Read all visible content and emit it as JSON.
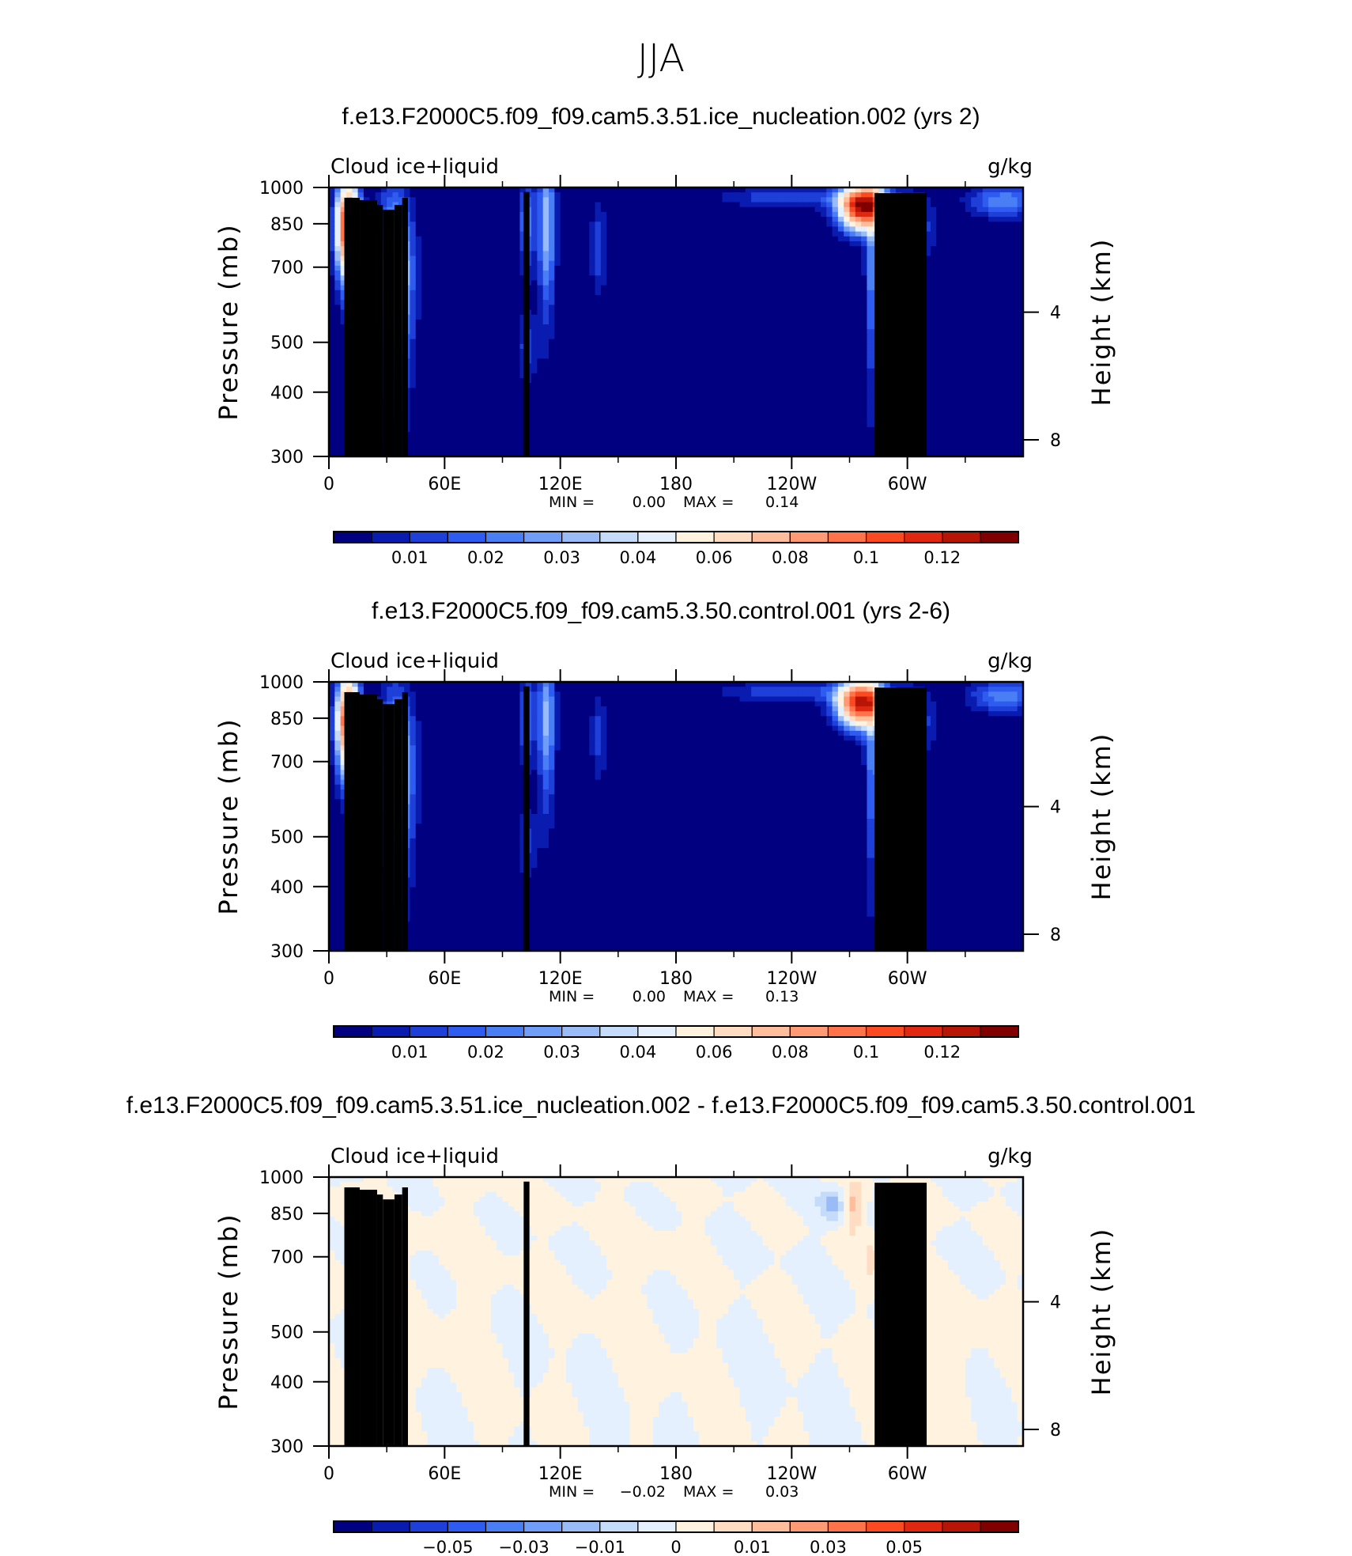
{
  "suptitle": "JJA",
  "colors": {
    "seq": [
      "#000080",
      "#0a1cb0",
      "#1e3fd8",
      "#2f5cf0",
      "#4a7ef5",
      "#6f9df7",
      "#99bcf7",
      "#c4dbfa",
      "#e4f0fe",
      "#fff3e0",
      "#ffdcc2",
      "#ffbd9c",
      "#ff9a74",
      "#ff734a",
      "#fb4a22",
      "#e02810",
      "#b81506",
      "#800000"
    ],
    "diff": [
      "#000080",
      "#0a1cb0",
      "#1e3fd8",
      "#2f5cf0",
      "#4a7ef5",
      "#6f9df7",
      "#99bcf7",
      "#c4dbfa",
      "#e4f0fe",
      "#fff3e0",
      "#ffdcc2",
      "#ffbd9c",
      "#ff9a74",
      "#ff734a",
      "#fb4a22",
      "#e02810",
      "#b81506",
      "#800000"
    ],
    "topo": "#000000"
  },
  "panels": [
    {
      "title": "f.e13.F2000C5.f09_f09.cam5.3.51.ice_nucleation.002 (yrs 2)",
      "left_label": "Cloud  ice+liquid",
      "right_label": "g/kg",
      "min_label": "MIN  =",
      "min_value": "0.00",
      "max_label": "MAX  =",
      "max_value": "0.14",
      "colorbar_ticks": [
        "0.01",
        "0.02",
        "0.03",
        "0.04",
        "0.06",
        "0.08",
        "0.1",
        "0.12"
      ]
    },
    {
      "title": "f.e13.F2000C5.f09_f09.cam5.3.50.control.001 (yrs 2-6)",
      "left_label": "Cloud  ice+liquid",
      "right_label": "g/kg",
      "min_label": "MIN  =",
      "min_value": "0.00",
      "max_label": "MAX  =",
      "max_value": "0.13",
      "colorbar_ticks": [
        "0.01",
        "0.02",
        "0.03",
        "0.04",
        "0.06",
        "0.08",
        "0.1",
        "0.12"
      ]
    },
    {
      "title": "f.e13.F2000C5.f09_f09.cam5.3.51.ice_nucleation.002 - f.e13.F2000C5.f09_f09.cam5.3.50.control.001",
      "left_label": "Cloud  ice+liquid",
      "right_label": "g/kg",
      "min_label": "MIN  =",
      "min_value": "−0.02",
      "max_label": "MAX  =",
      "max_value": "0.03",
      "colorbar_ticks": [
        "−0.05",
        "−0.03",
        "−0.01",
        "0",
        "0.01",
        "0.03",
        "0.05"
      ]
    }
  ],
  "chart_data": [
    {
      "type": "heatmap",
      "title": "f.e13.F2000C5.f09_f09.cam5.3.51.ice_nucleation.002 (yrs 2)",
      "variable": "Cloud  ice+liquid",
      "units": "g/kg",
      "xlabel": "",
      "ylabel": "Pressure (mb)",
      "ylabel_right": "Height (km)",
      "x_ticks": [
        "0",
        "60E",
        "120E",
        "180",
        "120W",
        "60W"
      ],
      "x_tick_values": [
        0,
        60,
        120,
        180,
        240,
        300
      ],
      "xlim": [
        0,
        360
      ],
      "y_ticks": [
        "300",
        "400",
        "500",
        "700",
        "850",
        "1000"
      ],
      "y_tick_values": [
        300,
        400,
        500,
        700,
        850,
        1000
      ],
      "ylim": [
        1000,
        300
      ],
      "y_scale": "log",
      "y_right_ticks": [
        "8",
        "4"
      ],
      "y_right_tick_values": [
        8,
        4
      ],
      "min": 0.0,
      "max": 0.14,
      "levels": [
        0.005,
        0.01,
        0.015,
        0.02,
        0.025,
        0.03,
        0.035,
        0.04,
        0.05,
        0.06,
        0.07,
        0.08,
        0.09,
        0.1,
        0.11,
        0.12,
        0.13
      ],
      "features": [
        {
          "lon": 10,
          "p": 840,
          "value": 0.12,
          "sx": 4,
          "sy": 120
        },
        {
          "lon": 34,
          "p": 680,
          "value": 0.055,
          "sx": 6,
          "sy": 180
        },
        {
          "lon": 103,
          "p": 490,
          "value": 0.012,
          "sx": 4,
          "sy": 55
        },
        {
          "lon": 103,
          "p": 860,
          "value": 0.022,
          "sx": 3,
          "sy": 120
        },
        {
          "lon": 113,
          "p": 850,
          "value": 0.035,
          "sx": 3,
          "sy": 190
        },
        {
          "lon": 140,
          "p": 770,
          "value": 0.014,
          "sx": 3,
          "sy": 110
        },
        {
          "lon": 277,
          "p": 920,
          "value": 0.135,
          "sx": 8,
          "sy": 60
        },
        {
          "lon": 282,
          "p": 700,
          "value": 0.025,
          "sx": 2.5,
          "sy": 210
        },
        {
          "lon": 302,
          "p": 840,
          "value": 0.018,
          "sx": 8,
          "sy": 90
        },
        {
          "lon": 240,
          "p": 955,
          "value": 0.015,
          "sx": 25,
          "sy": 30
        },
        {
          "lon": 350,
          "p": 940,
          "value": 0.025,
          "sx": 12,
          "sy": 45
        }
      ]
    },
    {
      "type": "heatmap",
      "title": "f.e13.F2000C5.f09_f09.cam5.3.50.control.001 (yrs 2-6)",
      "variable": "Cloud  ice+liquid",
      "units": "g/kg",
      "xlabel": "",
      "ylabel": "Pressure (mb)",
      "ylabel_right": "Height (km)",
      "x_ticks": [
        "0",
        "60E",
        "120E",
        "180",
        "120W",
        "60W"
      ],
      "x_tick_values": [
        0,
        60,
        120,
        180,
        240,
        300
      ],
      "xlim": [
        0,
        360
      ],
      "y_ticks": [
        "300",
        "400",
        "500",
        "700",
        "850",
        "1000"
      ],
      "y_tick_values": [
        300,
        400,
        500,
        700,
        850,
        1000
      ],
      "ylim": [
        1000,
        300
      ],
      "y_scale": "log",
      "y_right_ticks": [
        "8",
        "4"
      ],
      "y_right_tick_values": [
        8,
        4
      ],
      "min": 0.0,
      "max": 0.13,
      "levels": [
        0.005,
        0.01,
        0.015,
        0.02,
        0.025,
        0.03,
        0.035,
        0.04,
        0.05,
        0.06,
        0.07,
        0.08,
        0.09,
        0.1,
        0.11,
        0.12,
        0.13
      ],
      "features": [
        {
          "lon": 10,
          "p": 840,
          "value": 0.11,
          "sx": 4,
          "sy": 120
        },
        {
          "lon": 35,
          "p": 680,
          "value": 0.045,
          "sx": 6,
          "sy": 180
        },
        {
          "lon": 103,
          "p": 490,
          "value": 0.011,
          "sx": 4,
          "sy": 55
        },
        {
          "lon": 103,
          "p": 860,
          "value": 0.02,
          "sx": 3,
          "sy": 120
        },
        {
          "lon": 113,
          "p": 850,
          "value": 0.032,
          "sx": 3,
          "sy": 190
        },
        {
          "lon": 140,
          "p": 790,
          "value": 0.012,
          "sx": 3,
          "sy": 110
        },
        {
          "lon": 276,
          "p": 910,
          "value": 0.125,
          "sx": 8,
          "sy": 60
        },
        {
          "lon": 282,
          "p": 700,
          "value": 0.024,
          "sx": 2.5,
          "sy": 210
        },
        {
          "lon": 302,
          "p": 840,
          "value": 0.018,
          "sx": 8,
          "sy": 90
        },
        {
          "lon": 240,
          "p": 955,
          "value": 0.015,
          "sx": 25,
          "sy": 30
        },
        {
          "lon": 350,
          "p": 940,
          "value": 0.024,
          "sx": 12,
          "sy": 45
        }
      ]
    },
    {
      "type": "heatmap",
      "title": "f.e13.F2000C5.f09_f09.cam5.3.51.ice_nucleation.002 - f.e13.F2000C5.f09_f09.cam5.3.50.control.001",
      "variable": "Cloud  ice+liquid",
      "units": "g/kg",
      "xlabel": "",
      "ylabel": "Pressure (mb)",
      "ylabel_right": "Height (km)",
      "x_ticks": [
        "0",
        "60E",
        "120E",
        "180",
        "120W",
        "60W"
      ],
      "x_tick_values": [
        0,
        60,
        120,
        180,
        240,
        300
      ],
      "xlim": [
        0,
        360
      ],
      "y_ticks": [
        "300",
        "400",
        "500",
        "700",
        "850",
        "1000"
      ],
      "y_tick_values": [
        300,
        400,
        500,
        700,
        850,
        1000
      ],
      "ylim": [
        1000,
        300
      ],
      "y_scale": "log",
      "y_right_ticks": [
        "8",
        "4"
      ],
      "y_right_tick_values": [
        8,
        4
      ],
      "min": -0.02,
      "max": 0.03,
      "levels": [
        -0.06,
        -0.05,
        -0.04,
        -0.03,
        -0.02,
        -0.015,
        -0.01,
        -0.005,
        0,
        0.005,
        0.01,
        0.015,
        0.02,
        0.03,
        0.04,
        0.05,
        0.06
      ],
      "features": [
        {
          "lon": 34,
          "p": 700,
          "value": 0.012,
          "sx": 3,
          "sy": 80
        },
        {
          "lon": 10,
          "p": 860,
          "value": 0.004,
          "sx": 5,
          "sy": 80
        },
        {
          "lon": 272,
          "p": 880,
          "value": 0.013,
          "sx": 4,
          "sy": 60
        },
        {
          "lon": 262,
          "p": 880,
          "value": -0.012,
          "sx": 5,
          "sy": 50
        },
        {
          "lon": 282,
          "p": 700,
          "value": 0.006,
          "sx": 2,
          "sy": 60
        },
        {
          "lon": 60,
          "p": 700,
          "value": 0.0015,
          "sx": 25,
          "sy": 250
        },
        {
          "lon": 160,
          "p": 700,
          "value": 0.0015,
          "sx": 20,
          "sy": 250
        },
        {
          "lon": 325,
          "p": 450,
          "value": 0.002,
          "sx": 18,
          "sy": 120
        }
      ]
    }
  ]
}
